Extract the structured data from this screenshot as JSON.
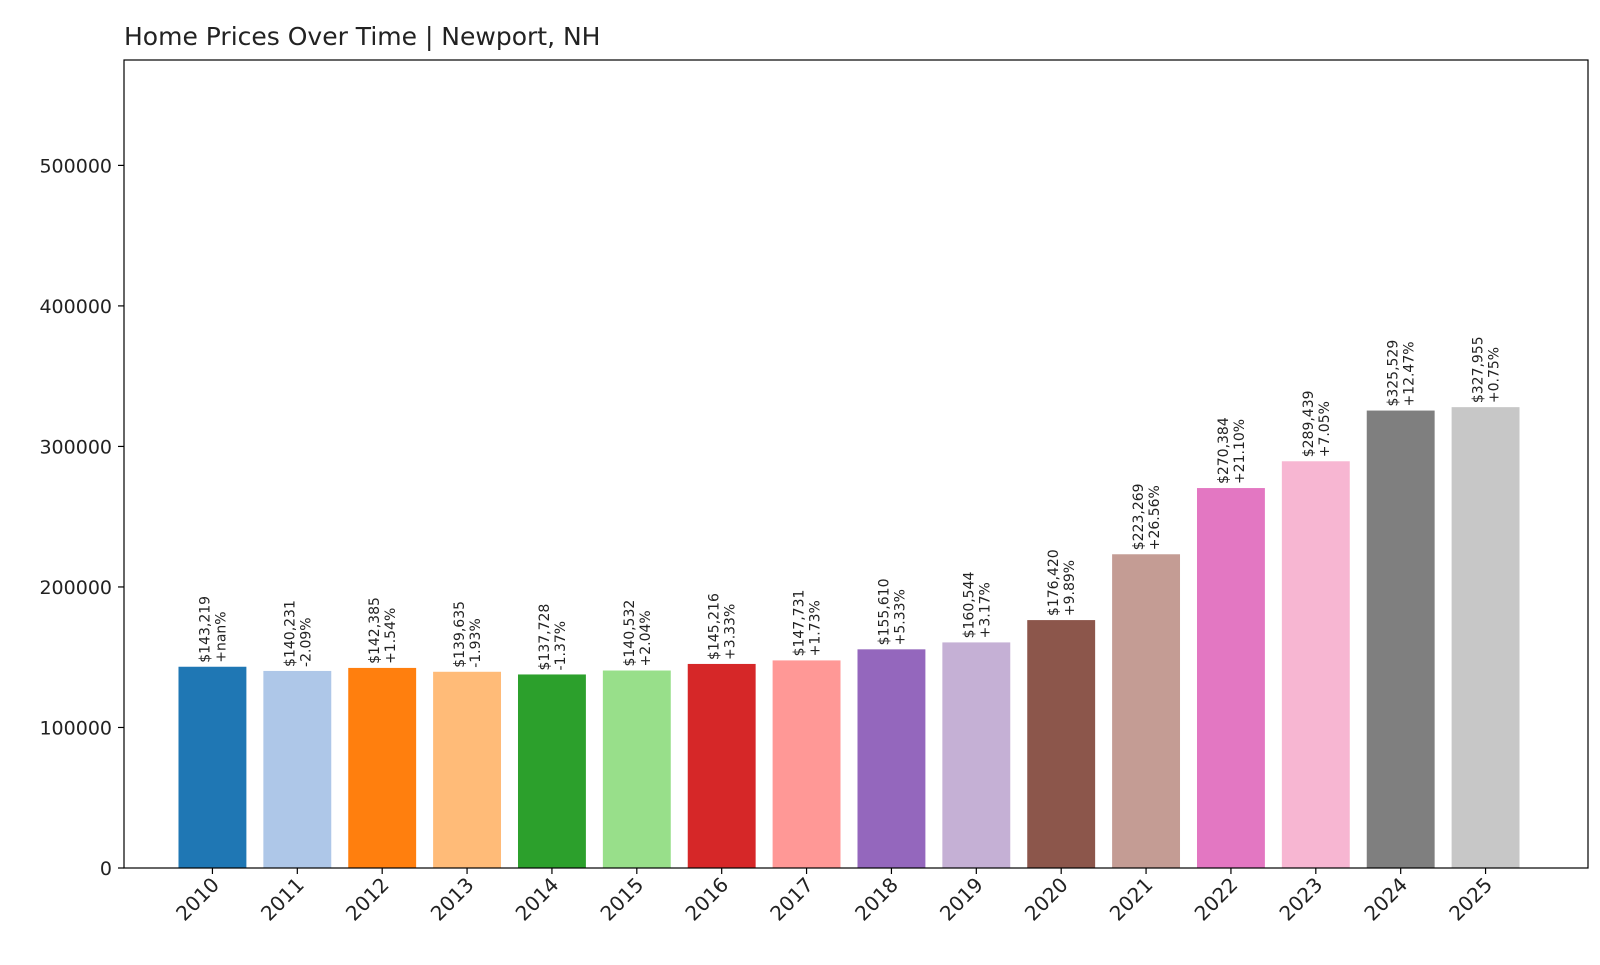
{
  "chart_data": {
    "type": "bar",
    "title": "Home Prices Over Time | Newport, NH",
    "xlabel": "",
    "ylabel": "",
    "categories": [
      "2010",
      "2011",
      "2012",
      "2013",
      "2014",
      "2015",
      "2016",
      "2017",
      "2018",
      "2019",
      "2020",
      "2021",
      "2022",
      "2023",
      "2024",
      "2025"
    ],
    "values": [
      143219,
      140231,
      142385,
      139635,
      137728,
      140532,
      145216,
      147731,
      155610,
      160544,
      176420,
      223269,
      270384,
      289439,
      325529,
      327955
    ],
    "value_labels": [
      "$143,219",
      "$140,231",
      "$142,385",
      "$139,635",
      "$137,728",
      "$140,532",
      "$145,216",
      "$147,731",
      "$155,610",
      "$160,544",
      "$176,420",
      "$223,269",
      "$270,384",
      "$289,439",
      "$325,529",
      "$327,955"
    ],
    "change_labels": [
      "+nan%",
      "-2.09%",
      "+1.54%",
      "-1.93%",
      "-1.37%",
      "+2.04%",
      "+3.33%",
      "+1.73%",
      "+5.33%",
      "+3.17%",
      "+9.89%",
      "+26.56%",
      "+21.10%",
      "+7.05%",
      "+12.47%",
      "+0.75%"
    ],
    "colors": [
      "#1f77b4",
      "#aec7e8",
      "#ff7f0e",
      "#ffbb78",
      "#2ca02c",
      "#98df8a",
      "#d62728",
      "#ff9896",
      "#9467bd",
      "#c5b0d5",
      "#8c564b",
      "#c49c94",
      "#e377c2",
      "#f7b6d2",
      "#7f7f7f",
      "#c7c7c7"
    ],
    "ylim": [
      0,
      575000
    ],
    "yticks": [
      0,
      100000,
      200000,
      300000,
      400000,
      500000
    ],
    "ytick_labels": [
      "0",
      "100000",
      "200000",
      "300000",
      "400000",
      "500000"
    ],
    "grid": false,
    "legend": "none"
  }
}
